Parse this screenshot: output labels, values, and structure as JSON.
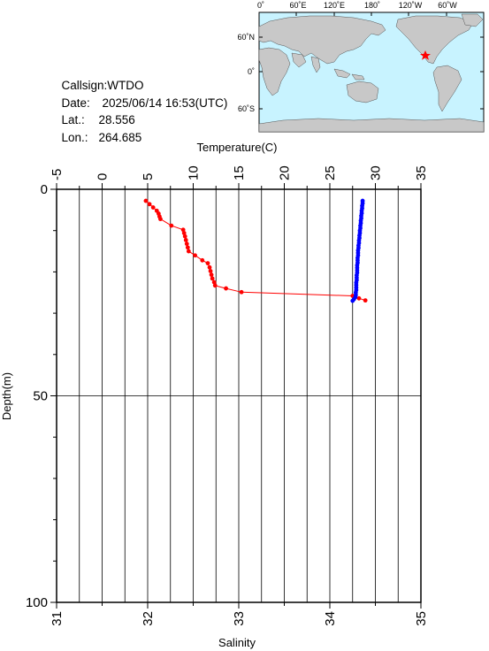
{
  "info": {
    "callsign_label": "Callsign:",
    "callsign": "WTDO",
    "date_label": "Date:",
    "date": "2025/06/14 16:53(UTC)",
    "lat_label": "Lat.:",
    "lat": "28.556",
    "lon_label": "Lon.:",
    "lon": "264.685"
  },
  "map": {
    "top_labels": [
      "0˚",
      "60˚E",
      "120˚E",
      "180˚",
      "120˚W",
      "60˚W"
    ],
    "left_labels": [
      "60˚N",
      "0˚",
      "60˚S"
    ],
    "ocean_color": "#c8f3ff",
    "land_color": "#c8c8c8",
    "marker_color": "#ff0000",
    "marker_icon": "star-icon"
  },
  "chart_data": {
    "type": "line",
    "y_axis": {
      "label": "Depth(m)",
      "range": [
        0,
        100
      ],
      "inverted": true,
      "tick_labels": [
        "0",
        "50",
        "100"
      ]
    },
    "x_axis_top": {
      "label": "Temperature(C)",
      "range": [
        -5,
        35
      ],
      "tick_labels": [
        "-5",
        "0",
        "5",
        "10",
        "15",
        "20",
        "25",
        "30",
        "35"
      ]
    },
    "x_axis_bottom": {
      "label": "Salinity",
      "range": [
        31,
        35
      ],
      "tick_labels": [
        "31",
        "32",
        "33",
        "34",
        "35"
      ]
    },
    "grid": true,
    "series": [
      {
        "name": "Temperature",
        "axis": "top",
        "color": "#ff0000",
        "points": [
          [
            4.8,
            2.8
          ],
          [
            5.2,
            3.6
          ],
          [
            5.6,
            4.4
          ],
          [
            6.0,
            5.2
          ],
          [
            6.2,
            5.9
          ],
          [
            6.3,
            6.6
          ],
          [
            6.4,
            7.2
          ],
          [
            7.6,
            8.8
          ],
          [
            8.9,
            9.8
          ],
          [
            9.0,
            10.6
          ],
          [
            9.1,
            11.4
          ],
          [
            9.2,
            12.3
          ],
          [
            9.3,
            13.2
          ],
          [
            9.4,
            14.1
          ],
          [
            9.5,
            15.0
          ],
          [
            10.2,
            16.0
          ],
          [
            11.0,
            17.2
          ],
          [
            11.6,
            17.9
          ],
          [
            11.8,
            18.9
          ],
          [
            11.9,
            19.8
          ],
          [
            12.0,
            20.7
          ],
          [
            12.1,
            21.6
          ],
          [
            12.3,
            22.5
          ],
          [
            12.4,
            23.3
          ],
          [
            13.6,
            24.0
          ],
          [
            15.3,
            24.9
          ],
          [
            27.5,
            25.8
          ],
          [
            28.2,
            26.4
          ],
          [
            28.9,
            26.9
          ]
        ]
      },
      {
        "name": "Salinity",
        "axis": "bottom",
        "color": "#0000ff",
        "points": [
          [
            34.36,
            2.8
          ],
          [
            34.36,
            3.4
          ],
          [
            34.355,
            4.0
          ],
          [
            34.355,
            4.6
          ],
          [
            34.35,
            5.2
          ],
          [
            34.35,
            5.8
          ],
          [
            34.345,
            6.4
          ],
          [
            34.345,
            7.0
          ],
          [
            34.34,
            7.6
          ],
          [
            34.34,
            8.2
          ],
          [
            34.335,
            8.8
          ],
          [
            34.335,
            9.4
          ],
          [
            34.33,
            10.0
          ],
          [
            34.33,
            10.6
          ],
          [
            34.325,
            11.2
          ],
          [
            34.325,
            11.8
          ],
          [
            34.32,
            12.4
          ],
          [
            34.32,
            13.0
          ],
          [
            34.315,
            13.6
          ],
          [
            34.315,
            14.2
          ],
          [
            34.31,
            14.8
          ],
          [
            34.31,
            15.4
          ],
          [
            34.31,
            16.0
          ],
          [
            34.305,
            16.6
          ],
          [
            34.305,
            17.2
          ],
          [
            34.305,
            17.8
          ],
          [
            34.3,
            18.4
          ],
          [
            34.3,
            19.0
          ],
          [
            34.3,
            19.6
          ],
          [
            34.3,
            20.2
          ],
          [
            34.295,
            20.8
          ],
          [
            34.295,
            21.4
          ],
          [
            34.295,
            22.0
          ],
          [
            34.29,
            22.6
          ],
          [
            34.29,
            23.2
          ],
          [
            34.29,
            23.8
          ],
          [
            34.29,
            24.4
          ],
          [
            34.285,
            25.0
          ],
          [
            34.285,
            25.6
          ],
          [
            34.28,
            26.1
          ],
          [
            34.265,
            26.6
          ],
          [
            34.25,
            27.0
          ]
        ]
      }
    ]
  }
}
